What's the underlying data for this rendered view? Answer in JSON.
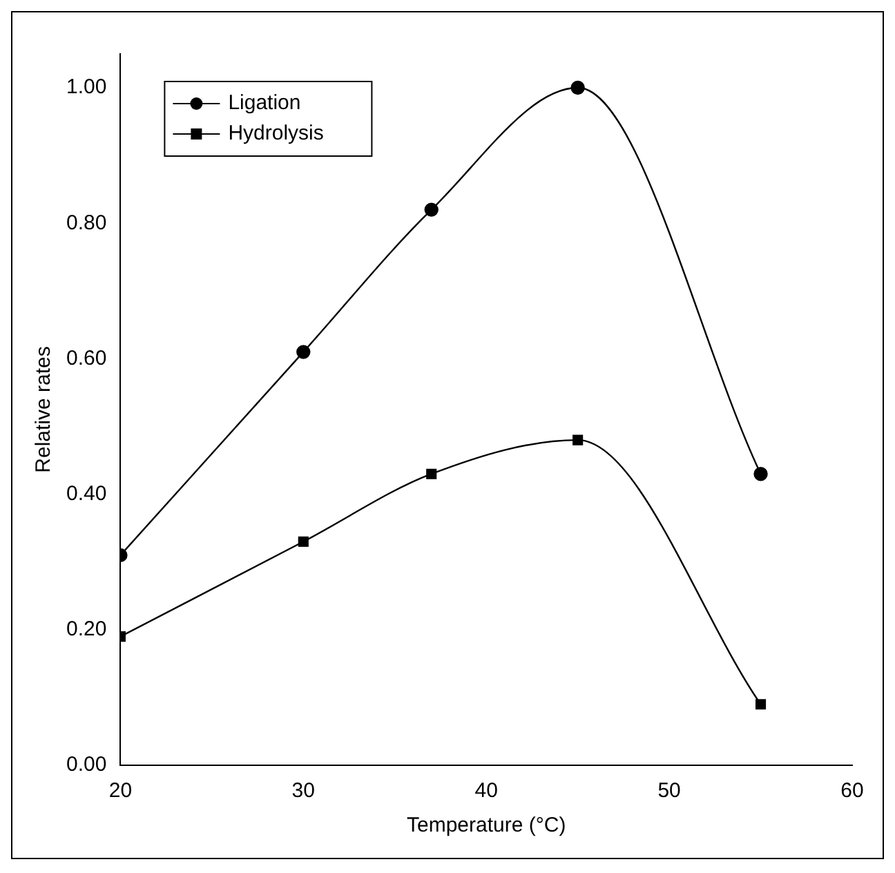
{
  "chart_data": {
    "type": "line",
    "xlabel": "Temperature (°C)",
    "ylabel": "Relative rates",
    "x": [
      20,
      30,
      37,
      45,
      55
    ],
    "series": [
      {
        "name": "Ligation",
        "color": "#000000",
        "marker": "circle",
        "values": [
          0.31,
          0.61,
          0.82,
          1.0,
          0.43
        ]
      },
      {
        "name": "Hydrolysis",
        "color": "#000000",
        "marker": "square",
        "values": [
          0.19,
          0.33,
          0.43,
          0.48,
          0.09
        ]
      }
    ],
    "xlim": [
      20,
      60
    ],
    "xticks": [
      20,
      30,
      40,
      50,
      60
    ],
    "ylim": [
      0,
      1.05
    ],
    "yticks": [
      {
        "value": 0,
        "label": "0.00"
      },
      {
        "value": 0.2,
        "label": "0.20"
      },
      {
        "value": 0.4,
        "label": "0.40"
      },
      {
        "value": 0.6,
        "label": "0.60"
      },
      {
        "value": 0.8,
        "label": "0.80"
      },
      {
        "value": 1,
        "label": "1.00"
      }
    ],
    "grid": false,
    "legend": "top left",
    "line_style": "solid"
  }
}
